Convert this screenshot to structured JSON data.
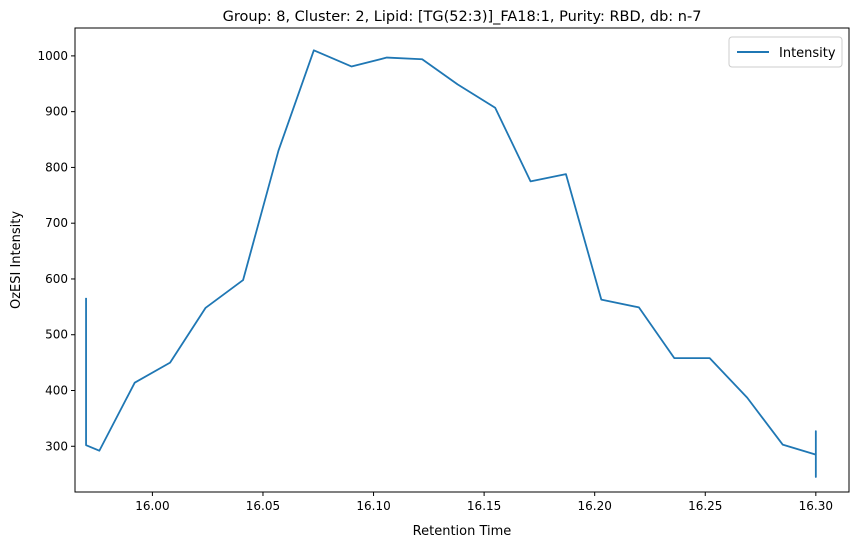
{
  "chart_data": {
    "type": "line",
    "title": "Group: 8, Cluster: 2, Lipid: [TG(52:3)]_FA18:1, Purity: RBD, db: n-7",
    "xlabel": "Retention Time",
    "ylabel": "OzESI Intensity",
    "xlim": [
      15.965,
      16.315
    ],
    "ylim": [
      218,
      1050
    ],
    "xticks": [
      16.0,
      16.05,
      16.1,
      16.15,
      16.2,
      16.25,
      16.3
    ],
    "yticks": [
      300,
      400,
      500,
      600,
      700,
      800,
      900,
      1000
    ],
    "xtick_labels": [
      "16.00",
      "16.05",
      "16.10",
      "16.15",
      "16.20",
      "16.25",
      "16.30"
    ],
    "ytick_labels": [
      "300",
      "400",
      "500",
      "600",
      "700",
      "800",
      "900",
      "1000"
    ],
    "grid": false,
    "legend": {
      "position": "top-right",
      "entries": [
        "Intensity"
      ]
    },
    "series": [
      {
        "name": "Intensity",
        "color": "#1f77b4",
        "x": [
          15.97,
          15.97,
          15.97,
          15.97,
          15.97,
          15.976,
          15.992,
          16.008,
          16.024,
          16.041,
          16.057,
          16.073,
          16.09,
          16.106,
          16.122,
          16.138,
          16.155,
          16.171,
          16.187,
          16.203,
          16.22,
          16.236,
          16.252,
          16.269,
          16.285,
          16.3,
          16.3,
          16.3,
          16.3,
          16.3
        ],
        "y": [
          566,
          362,
          520,
          400,
          302,
          292,
          414,
          450,
          548,
          598,
          830,
          1010,
          981,
          997,
          994,
          949,
          907,
          775,
          788,
          563,
          549,
          458,
          458,
          387,
          303,
          285,
          327,
          245,
          305,
          285
        ]
      }
    ]
  }
}
